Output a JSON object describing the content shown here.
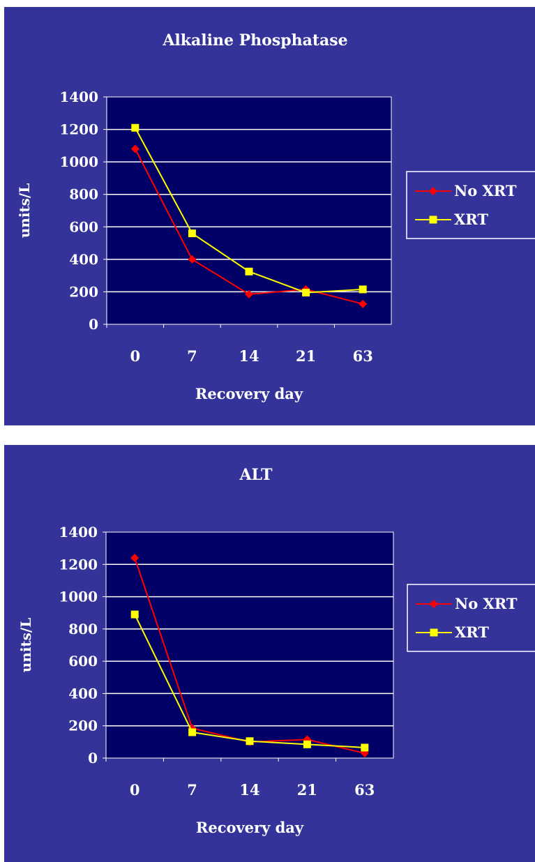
{
  "chart_data": [
    {
      "type": "line",
      "title": "Alkaline Phosphatase",
      "xlabel": "Recovery day",
      "ylabel": "units/L",
      "categories": [
        "0",
        "7",
        "14",
        "21",
        "63"
      ],
      "ylim": [
        0,
        1400
      ],
      "yticks": [
        "0",
        "200",
        "400",
        "600",
        "800",
        "1000",
        "1200",
        "1400"
      ],
      "grid": true,
      "legend": "right",
      "series": [
        {
          "name": "No XRT",
          "values": [
            1080,
            400,
            185,
            215,
            125
          ],
          "color": "#ff0000",
          "marker": "diamond"
        },
        {
          "name": "XRT",
          "values": [
            1210,
            560,
            325,
            195,
            215
          ],
          "color": "#ffff00",
          "marker": "square"
        }
      ]
    },
    {
      "type": "line",
      "title": "ALT",
      "xlabel": "Recovery day",
      "ylabel": "units/L",
      "categories": [
        "0",
        "7",
        "14",
        "21",
        "63"
      ],
      "ylim": [
        0,
        1400
      ],
      "yticks": [
        "0",
        "200",
        "400",
        "600",
        "800",
        "1000",
        "1200",
        "1400"
      ],
      "grid": true,
      "legend": "right",
      "series": [
        {
          "name": "No XRT",
          "values": [
            1240,
            185,
            100,
            115,
            30
          ],
          "color": "#ff0000",
          "marker": "diamond"
        },
        {
          "name": "XRT",
          "values": [
            890,
            160,
            105,
            85,
            65
          ],
          "color": "#ffff00",
          "marker": "square"
        }
      ]
    }
  ],
  "colors": {
    "background": "#333399",
    "plot_area": "#000066",
    "gridline": "#ffffff",
    "text": "#ffffff",
    "no_xrt": "#ff0000",
    "xrt": "#ffff00"
  }
}
